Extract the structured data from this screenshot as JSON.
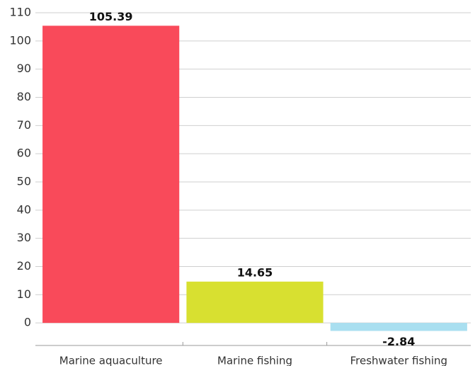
{
  "chart_data": {
    "type": "bar",
    "categories": [
      "Marine aquaculture",
      "Marine fishing",
      "Freshwater fishing"
    ],
    "values": [
      105.39,
      14.65,
      -2.84
    ],
    "colors": [
      "#f94a5a",
      "#d8e030",
      "#a9dff0"
    ],
    "ylim": [
      -8,
      110
    ],
    "yticks": [
      0,
      10,
      20,
      30,
      40,
      50,
      60,
      70,
      80,
      90,
      100,
      110
    ],
    "grid": true
  }
}
